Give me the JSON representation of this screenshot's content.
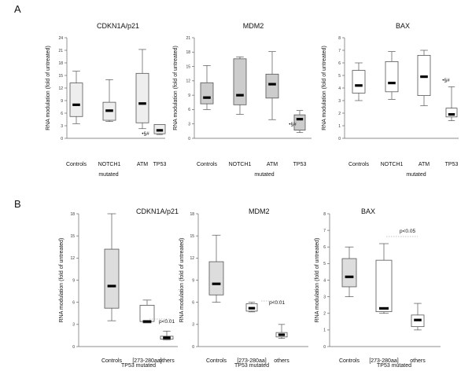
{
  "panels": [
    {
      "letter": "A"
    },
    {
      "letter": "B"
    }
  ],
  "chart_data": [
    {
      "type": "boxplot",
      "panel": "A",
      "title": "CDKN1A/p21",
      "ylabel": "RNA modulation (fold of untreated)",
      "ylim": [
        0,
        24
      ],
      "yticks": [
        "0",
        "3",
        "6",
        "9",
        "12",
        "15",
        "18",
        "21",
        "24"
      ],
      "categories": [
        "Controls",
        "NOTCH1",
        "ATM",
        "TP53"
      ],
      "group_label": "mutated",
      "box_colors": [
        "#eeeeee",
        "#eeeeee",
        "#eeeeee",
        "#eeeeee"
      ],
      "annotation": "•§#",
      "series": [
        {
          "values": [
            [
              3.5,
              5.2,
              8.0,
              13.2,
              16.0
            ],
            [
              4.0,
              4.3,
              6.6,
              8.6,
              14.0
            ],
            [
              2.3,
              3.7,
              8.3,
              15.5,
              21.2
            ],
            [
              0.9,
              1.1,
              1.9,
              3.3,
              3.3
            ]
          ]
        }
      ]
    },
    {
      "type": "boxplot",
      "panel": "A",
      "title": "MDM2",
      "ylabel": "RNA modulation (fold of untreated)",
      "ylim": [
        0,
        21
      ],
      "yticks": [
        "0",
        "3",
        "6",
        "9",
        "12",
        "15",
        "18",
        "21"
      ],
      "categories": [
        "Controls",
        "NOTCH1",
        "ATM",
        "TP53"
      ],
      "group_label": "mutated",
      "box_colors": [
        "#cccccc",
        "#cccccc",
        "#cccccc",
        "#cccccc"
      ],
      "annotation": "•§#",
      "series": [
        {
          "values": [
            [
              6.0,
              7.2,
              8.5,
              11.6,
              15.2
            ],
            [
              5.0,
              7.0,
              9.0,
              16.6,
              17.0
            ],
            [
              3.9,
              8.4,
              11.3,
              13.4,
              18.1
            ],
            [
              1.2,
              1.7,
              4.0,
              4.9,
              5.8
            ]
          ]
        }
      ]
    },
    {
      "type": "boxplot",
      "panel": "A",
      "title": "BAX",
      "ylabel": "RNA modulation (fold of untreated)",
      "ylim": [
        0,
        8
      ],
      "yticks": [
        "0",
        "1",
        "2",
        "3",
        "4",
        "5",
        "6",
        "7",
        "8"
      ],
      "categories": [
        "Controls",
        "NOTCH1",
        "ATM",
        "TP53"
      ],
      "group_label": "mutated",
      "box_colors": [
        "#ffffff",
        "#ffffff",
        "#ffffff",
        "#ffffff"
      ],
      "annotation": "•§#",
      "series": [
        {
          "values": [
            [
              3.0,
              3.6,
              4.2,
              5.4,
              6.0
            ],
            [
              3.1,
              3.7,
              4.4,
              6.1,
              6.9
            ],
            [
              2.6,
              3.4,
              4.9,
              6.6,
              7.0
            ],
            [
              1.4,
              1.7,
              1.9,
              2.4,
              4.1
            ]
          ]
        }
      ]
    },
    {
      "type": "boxplot",
      "panel": "B",
      "title": "CDKN1A/p21",
      "ylabel": "RNA modulation (fold of untreated)",
      "ylim": [
        0,
        18
      ],
      "yticks": [
        "0",
        "3",
        "6",
        "9",
        "12",
        "15",
        "18"
      ],
      "categories": [
        "Controls",
        "[273-280aa]",
        "others"
      ],
      "group_label": "TP53 mutated",
      "box_colors": [
        "#dddddd",
        "#ffffff",
        "#ffffff"
      ],
      "pvalue": "p<0.01",
      "series": [
        {
          "values": [
            [
              3.5,
              5.2,
              8.2,
              13.2,
              18.0
            ],
            [
              3.2,
              3.4,
              3.4,
              5.6,
              6.3
            ],
            [
              0.9,
              1.0,
              1.2,
              1.4,
              2.1
            ]
          ]
        }
      ]
    },
    {
      "type": "boxplot",
      "panel": "B",
      "title": "MDM2",
      "ylabel": "RNA modulation (fold of untreated)",
      "ylim": [
        0,
        18
      ],
      "yticks": [
        "0",
        "3",
        "6",
        "9",
        "12",
        "15",
        "18"
      ],
      "categories": [
        "Controls",
        "[273-280aa]",
        "others"
      ],
      "group_label": "TP53 mutated",
      "box_colors": [
        "#dddddd",
        "#ffffff",
        "#ffffff"
      ],
      "pvalue": "p<0.01",
      "series": [
        {
          "values": [
            [
              6.0,
              7.0,
              8.5,
              11.5,
              15.1
            ],
            [
              4.7,
              4.8,
              5.2,
              5.8,
              6.0
            ],
            [
              1.1,
              1.3,
              1.6,
              1.9,
              3.0
            ]
          ]
        }
      ]
    },
    {
      "type": "boxplot",
      "panel": "B",
      "title": "BAX",
      "ylabel": "RNA modulation (fold of untreated)",
      "ylim": [
        0,
        8
      ],
      "yticks": [
        "0",
        "1",
        "2",
        "3",
        "4",
        "5",
        "6",
        "7",
        "8"
      ],
      "categories": [
        "Controls",
        "[273-280aa]",
        "others"
      ],
      "group_label": "TP53 mutated",
      "box_colors": [
        "#dddddd",
        "#ffffff",
        "#ffffff"
      ],
      "pvalue": "p<0.05",
      "series": [
        {
          "values": [
            [
              3.0,
              3.6,
              4.2,
              5.3,
              6.0
            ],
            [
              2.0,
              2.1,
              2.3,
              5.2,
              6.2
            ],
            [
              1.0,
              1.2,
              1.6,
              1.9,
              2.6
            ]
          ]
        }
      ]
    }
  ]
}
